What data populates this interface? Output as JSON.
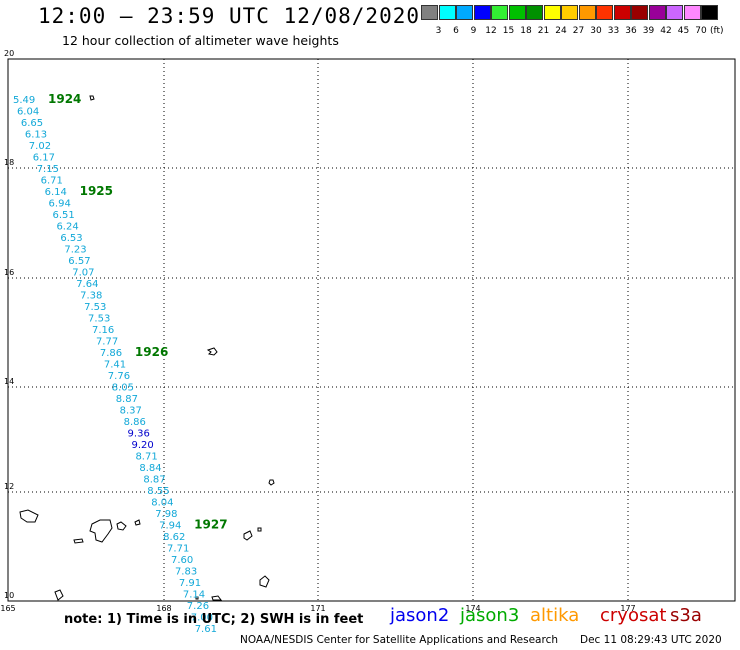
{
  "header": {
    "title": "12:00 – 23:59 UTC 12/08/2020",
    "subtitle": "12 hour collection of altimeter wave heights"
  },
  "colorbar": {
    "colors": [
      "#808080",
      "#00ffff",
      "#00aaff",
      "#0000ff",
      "#33ee33",
      "#00c000",
      "#009000",
      "#ffff00",
      "#ffcc00",
      "#ff9900",
      "#ff3300",
      "#cc0000",
      "#990000",
      "#990099",
      "#cc66ff",
      "#ff88ff",
      "#000000"
    ],
    "labels": [
      "3",
      "6",
      "9",
      "12",
      "15",
      "18",
      "21",
      "24",
      "27",
      "30",
      "33",
      "36",
      "39",
      "42",
      "45",
      "70"
    ],
    "unit": "(ft)"
  },
  "axes": {
    "lat_labels": [
      "20",
      "18",
      "16",
      "14",
      "12",
      "10"
    ],
    "lon_labels": [
      "165",
      "168",
      "171",
      "174",
      "177"
    ]
  },
  "track": {
    "colors": {
      "cyan": "#12a8d8",
      "blue": "#0000cc",
      "green": "#007700"
    },
    "swh_labels": [
      {
        "text": "5.49",
        "c": "cyan",
        "row": 0
      },
      {
        "text": "6.04",
        "c": "cyan",
        "row": 1
      },
      {
        "text": "6.65",
        "c": "cyan",
        "row": 2
      },
      {
        "text": "6.13",
        "c": "cyan",
        "row": 3
      },
      {
        "text": "7.02",
        "c": "cyan",
        "row": 4
      },
      {
        "text": "6.17",
        "c": "cyan",
        "row": 5
      },
      {
        "text": "7.15",
        "c": "cyan",
        "row": 6
      },
      {
        "text": "6.71",
        "c": "cyan",
        "row": 7
      },
      {
        "text": "6.14",
        "c": "cyan",
        "row": 8
      },
      {
        "text": "6.94",
        "c": "cyan",
        "row": 9
      },
      {
        "text": "6.51",
        "c": "cyan",
        "row": 10
      },
      {
        "text": "6.24",
        "c": "cyan",
        "row": 11
      },
      {
        "text": "6.53",
        "c": "cyan",
        "row": 12
      },
      {
        "text": "7.23",
        "c": "cyan",
        "row": 13
      },
      {
        "text": "6.57",
        "c": "cyan",
        "row": 14
      },
      {
        "text": "7.07",
        "c": "cyan",
        "row": 15
      },
      {
        "text": "7.64",
        "c": "cyan",
        "row": 16
      },
      {
        "text": "7.38",
        "c": "cyan",
        "row": 17
      },
      {
        "text": "7.53",
        "c": "cyan",
        "row": 18
      },
      {
        "text": "7.53",
        "c": "cyan",
        "row": 19
      },
      {
        "text": "7.16",
        "c": "cyan",
        "row": 20
      },
      {
        "text": "7.77",
        "c": "cyan",
        "row": 21
      },
      {
        "text": "7.86",
        "c": "cyan",
        "row": 22
      },
      {
        "text": "7.41",
        "c": "cyan",
        "row": 23
      },
      {
        "text": "7.76",
        "c": "cyan",
        "row": 24
      },
      {
        "text": "8.05",
        "c": "cyan",
        "row": 25
      },
      {
        "text": "8.87",
        "c": "cyan",
        "row": 26
      },
      {
        "text": "8.37",
        "c": "cyan",
        "row": 27
      },
      {
        "text": "8.86",
        "c": "cyan",
        "row": 28
      },
      {
        "text": "9.36",
        "c": "blue",
        "row": 29
      },
      {
        "text": "9.20",
        "c": "blue",
        "row": 30
      },
      {
        "text": "8.71",
        "c": "cyan",
        "row": 31
      },
      {
        "text": "8.84",
        "c": "cyan",
        "row": 32
      },
      {
        "text": "8.87",
        "c": "cyan",
        "row": 33
      },
      {
        "text": "8.55",
        "c": "cyan",
        "row": 34
      },
      {
        "text": "8.04",
        "c": "cyan",
        "row": 35
      },
      {
        "text": "7.98",
        "c": "cyan",
        "row": 36
      },
      {
        "text": "7.94",
        "c": "cyan",
        "row": 37
      },
      {
        "text": "8.62",
        "c": "cyan",
        "row": 38
      },
      {
        "text": "7.71",
        "c": "cyan",
        "row": 39
      },
      {
        "text": "7.60",
        "c": "cyan",
        "row": 40
      },
      {
        "text": "7.83",
        "c": "cyan",
        "row": 41
      },
      {
        "text": "7.91",
        "c": "cyan",
        "row": 42
      },
      {
        "text": "7.14",
        "c": "cyan",
        "row": 43
      },
      {
        "text": "7.26",
        "c": "cyan",
        "row": 44
      },
      {
        "text": "7.00",
        "c": "cyan",
        "row": 45
      },
      {
        "text": "7.61",
        "c": "cyan",
        "row": 46
      }
    ],
    "time_labels": [
      {
        "text": "1924",
        "row": 0
      },
      {
        "text": "1925",
        "row": 8
      },
      {
        "text": "1926",
        "row": 22
      },
      {
        "text": "1927",
        "row": 37
      }
    ]
  },
  "footer": {
    "note": "note:  1) Time is in UTC;  2) SWH is in feet",
    "satellites": [
      {
        "name": "jason2",
        "color": "#0000ee"
      },
      {
        "name": "jason3",
        "color": "#00aa00"
      },
      {
        "name": "altika",
        "color": "#ff9900"
      },
      {
        "name": "cryosat",
        "color": "#cc0000"
      },
      {
        "name": "s3a",
        "color": "#990000"
      }
    ],
    "credit": "NOAA/NESDIS Center for Satellite Applications and Research",
    "timestamp": "Dec 11 08:29:43 UTC 2020"
  }
}
